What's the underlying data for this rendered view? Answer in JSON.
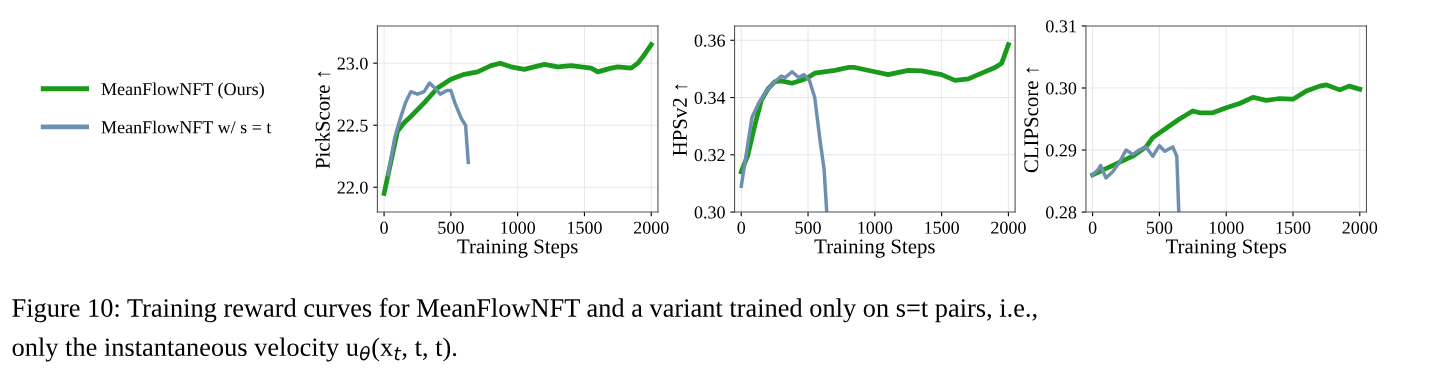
{
  "chart_data": [
    {
      "type": "line",
      "ylabel": "PickScore ↑",
      "xlabel": "Training Steps",
      "xlim": [
        -50,
        2050
      ],
      "xticks": [
        0,
        500,
        1000,
        1500,
        2000
      ],
      "ylim": [
        21.8,
        23.3
      ],
      "yticks": [
        {
          "value": 22.0,
          "label": "22.0"
        },
        {
          "value": 22.5,
          "label": "22.5"
        },
        {
          "value": 23.0,
          "label": "23.0"
        }
      ],
      "grid": true,
      "legend": "left",
      "line_style": "solid",
      "marker": "none",
      "annotations": [
        "Figure 10: Training reward curves for MeanFlowNFT and a variant trained only on s=t pairs, i.e.,",
        "only the instantaneous velocity u$_{θ}$(x$_{t}$, t, t)."
      ],
      "series": [
        {
          "name": "MeanFlowNFT (Ours)",
          "color": "#1a9a1a",
          "x": [
            0,
            50,
            100,
            150,
            200,
            300,
            400,
            500,
            600,
            700,
            800,
            870,
            950,
            1050,
            1200,
            1300,
            1400,
            1550,
            1600,
            1700,
            1750,
            1850,
            1900,
            1950,
            2000
          ],
          "values": [
            21.95,
            22.2,
            22.45,
            22.52,
            22.57,
            22.68,
            22.8,
            22.87,
            22.91,
            22.93,
            22.98,
            23.0,
            22.97,
            22.95,
            22.99,
            22.97,
            22.98,
            22.96,
            22.93,
            22.96,
            22.97,
            22.96,
            23.0,
            23.07,
            23.15
          ]
        },
        {
          "name": "MeanFlowNFT w/ s = t",
          "color": "#6f8fb0",
          "x": [
            30,
            80,
            120,
            160,
            200,
            250,
            300,
            340,
            380,
            420,
            470,
            500,
            530,
            580,
            610,
            630
          ],
          "values": [
            22.1,
            22.4,
            22.55,
            22.68,
            22.77,
            22.75,
            22.77,
            22.84,
            22.8,
            22.75,
            22.78,
            22.78,
            22.68,
            22.55,
            22.5,
            22.2
          ]
        }
      ]
    },
    {
      "type": "line",
      "ylabel": "HPSv2 ↑",
      "xlabel": "Training Steps",
      "xlim": [
        -50,
        2050
      ],
      "xticks": [
        0,
        500,
        1000,
        1500,
        2000
      ],
      "ylim": [
        0.3,
        0.365
      ],
      "yticks": [
        {
          "value": 0.3,
          "label": "0.30"
        },
        {
          "value": 0.32,
          "label": "0.32"
        },
        {
          "value": 0.34,
          "label": "0.34"
        },
        {
          "value": 0.36,
          "label": "0.36"
        }
      ],
      "grid": true,
      "line_style": "solid",
      "marker": "none",
      "series": [
        {
          "color": "#1a9a1a",
          "x": [
            0,
            50,
            100,
            150,
            200,
            250,
            300,
            380,
            450,
            500,
            550,
            700,
            800,
            850,
            1000,
            1100,
            1250,
            1350,
            1500,
            1600,
            1700,
            1800,
            1900,
            1950,
            2000
          ],
          "values": [
            0.314,
            0.32,
            0.33,
            0.339,
            0.343,
            0.3455,
            0.3458,
            0.345,
            0.346,
            0.347,
            0.3485,
            0.3495,
            0.3505,
            0.3505,
            0.349,
            0.348,
            0.3495,
            0.3493,
            0.348,
            0.346,
            0.3465,
            0.3485,
            0.3505,
            0.352,
            0.3585
          ]
        },
        {
          "color": "#6f8fb0",
          "x": [
            0,
            30,
            80,
            130,
            200,
            250,
            300,
            330,
            380,
            430,
            470,
            510,
            550,
            590,
            620,
            640
          ],
          "values": [
            0.309,
            0.318,
            0.333,
            0.338,
            0.343,
            0.3455,
            0.3475,
            0.347,
            0.349,
            0.347,
            0.348,
            0.346,
            0.34,
            0.325,
            0.315,
            0.3
          ]
        }
      ]
    },
    {
      "type": "line",
      "ylabel": "CLIPScore ↑",
      "xlabel": "Training Steps",
      "xlim": [
        -50,
        2050
      ],
      "xticks": [
        0,
        500,
        1000,
        1500,
        2000
      ],
      "ylim": [
        0.28,
        0.31
      ],
      "yticks": [
        {
          "value": 0.28,
          "label": "0.28"
        },
        {
          "value": 0.29,
          "label": "0.29"
        },
        {
          "value": 0.3,
          "label": "0.30"
        },
        {
          "value": 0.31,
          "label": "0.31"
        }
      ],
      "grid": true,
      "line_style": "solid",
      "marker": "none",
      "series": [
        {
          "color": "#1a9a1a",
          "x": [
            0,
            100,
            200,
            300,
            400,
            450,
            550,
            650,
            750,
            800,
            900,
            1000,
            1100,
            1200,
            1300,
            1400,
            1500,
            1600,
            1700,
            1750,
            1850,
            1920,
            2000
          ],
          "values": [
            0.286,
            0.287,
            0.288,
            0.289,
            0.2905,
            0.292,
            0.2935,
            0.295,
            0.2963,
            0.296,
            0.296,
            0.2968,
            0.2975,
            0.2985,
            0.298,
            0.2983,
            0.2982,
            0.2995,
            0.3003,
            0.3005,
            0.2997,
            0.3003,
            0.2998
          ]
        },
        {
          "color": "#6f8fb0",
          "x": [
            0,
            40,
            60,
            100,
            150,
            200,
            250,
            300,
            350,
            400,
            450,
            500,
            540,
            600,
            630,
            645
          ],
          "values": [
            0.286,
            0.2868,
            0.2875,
            0.2855,
            0.2865,
            0.288,
            0.29,
            0.2893,
            0.29,
            0.2905,
            0.289,
            0.2907,
            0.2898,
            0.2905,
            0.289,
            0.28
          ]
        }
      ]
    }
  ]
}
